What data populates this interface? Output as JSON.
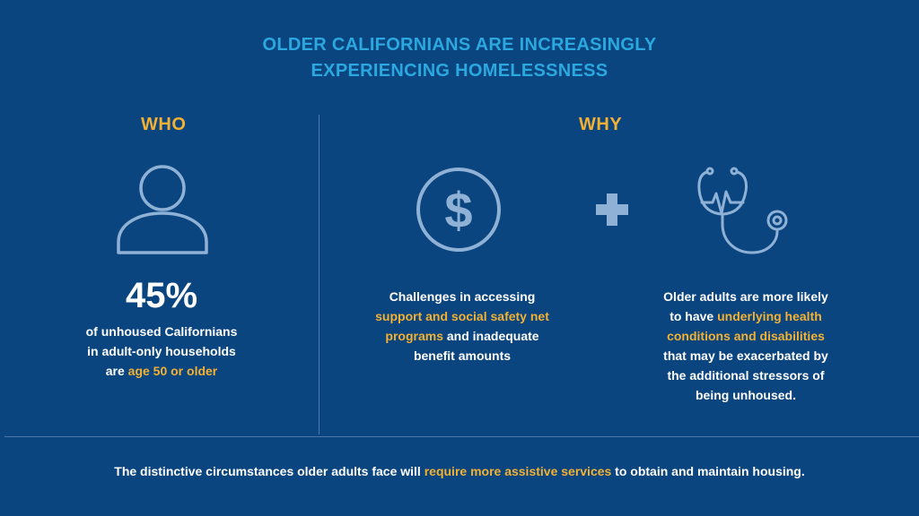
{
  "title": {
    "line1": "OLDER CALIFORNIANS ARE INCREASINGLY",
    "line2": "EXPERIENCING HOMELESSNESS"
  },
  "who": {
    "heading": "WHO",
    "icon": "person-icon",
    "stat": "45%",
    "lines": [
      "of unhoused Californians",
      "in adult-only households"
    ],
    "line3_pre": "are ",
    "line3_hl": "age 50 or older"
  },
  "why": {
    "heading": "WHY",
    "icons": [
      "dollar-icon",
      "plus-icon",
      "stethoscope-icon"
    ],
    "left": {
      "line1": "Challenges in accessing",
      "hl1": "support and social safety net",
      "hl2": "programs",
      "line3_rest": " and inadequate",
      "line4": "benefit amounts"
    },
    "right": {
      "line1": "Older adults are more likely",
      "line2_pre": "to have ",
      "line2_hl": "underlying health",
      "hl3": "conditions and disabilities",
      "line4": "that may be exacerbated by",
      "line5": "the additional stressors of",
      "line6": "being unhoused."
    }
  },
  "footer": {
    "pre": "The distinctive circumstances older adults face will ",
    "hl": "require more assistive services",
    "post": " to obtain and maintain housing."
  },
  "colors": {
    "background": "#0b4580",
    "title": "#2aa8df",
    "accent": "#f2b133",
    "icon": "#8fb1d6"
  }
}
